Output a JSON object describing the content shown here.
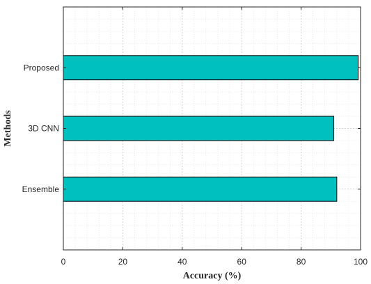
{
  "chart_data": {
    "type": "bar",
    "orientation": "horizontal",
    "categories": [
      "Ensemble",
      "3D CNN",
      "Proposed"
    ],
    "values": [
      92,
      91,
      99.2
    ],
    "xlabel": "Accuracy (%)",
    "ylabel": "Methods",
    "xlim": [
      0,
      100
    ],
    "xticks": [
      0,
      20,
      40,
      60,
      80,
      100
    ],
    "grid": "on (major + minor, dotted)",
    "legend": "none",
    "colors": {
      "bar_fill": "#00bfbf",
      "bar_edge": "#000000"
    }
  }
}
